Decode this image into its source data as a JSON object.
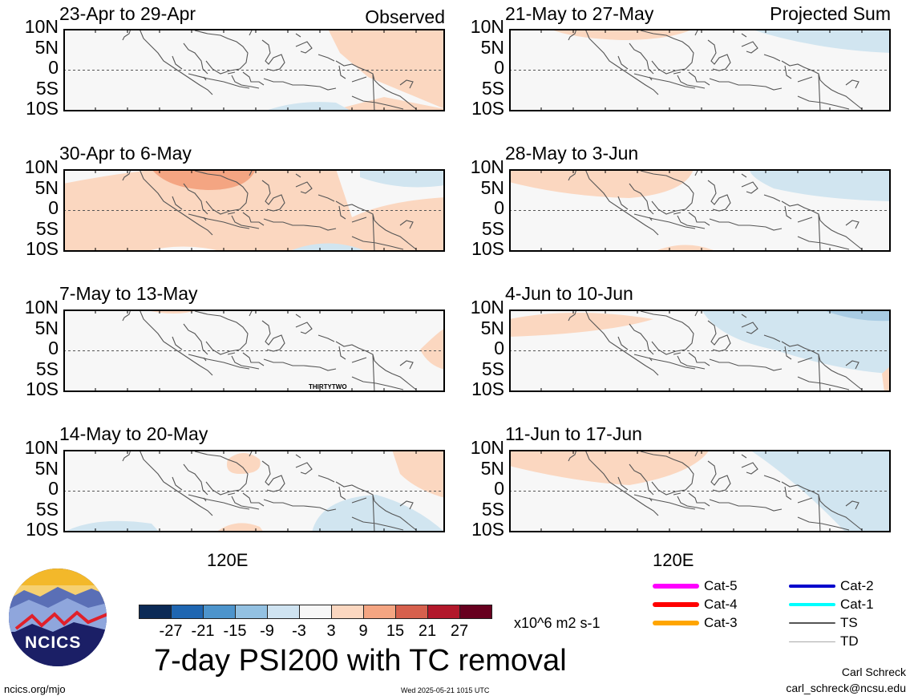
{
  "figure": {
    "main_title": "7-day PSI200 with TC removal",
    "units": "x10^6 m2 s-1",
    "left_column_tag": "Observed",
    "right_column_tag": "Projected Sum",
    "lat_labels": [
      "10N",
      "5N",
      "0",
      "5S",
      "10S"
    ],
    "lon_label": "120E",
    "site": "ncics.org/mjo",
    "timestamp": "Wed 2025-05-21 1015 UTC",
    "author": "Carl Schreck",
    "email": "carl_schreck@ncsu.edu",
    "logo_text": "NCICS"
  },
  "panels": [
    {
      "title": "23-Apr to 29-Apr",
      "column": "left",
      "row": 0
    },
    {
      "title": "30-Apr to 6-May",
      "column": "left",
      "row": 1
    },
    {
      "title": "7-May to 13-May",
      "column": "left",
      "row": 2,
      "annotation": "THIRTYTWO"
    },
    {
      "title": "14-May to 20-May",
      "column": "left",
      "row": 3
    },
    {
      "title": "21-May to 27-May",
      "column": "right",
      "row": 0
    },
    {
      "title": "28-May to 3-Jun",
      "column": "right",
      "row": 1
    },
    {
      "title": "4-Jun to 10-Jun",
      "column": "right",
      "row": 2
    },
    {
      "title": "11-Jun to 17-Jun",
      "column": "right",
      "row": 3
    }
  ],
  "colorbar": {
    "colors": [
      "#0b2a56",
      "#1f66b1",
      "#4d94cc",
      "#93c1e2",
      "#cfe3f1",
      "#f7f7f7",
      "#fbd7c0",
      "#f4a582",
      "#d6604d",
      "#b2182b",
      "#67001f"
    ],
    "ticks": [
      "-27",
      "-21",
      "-15",
      "-9",
      "-3",
      "3",
      "9",
      "15",
      "21",
      "27"
    ]
  },
  "legend": [
    {
      "label": "Cat-5",
      "color": "#ff00ff",
      "weight": "thick"
    },
    {
      "label": "Cat-4",
      "color": "#ff0000",
      "weight": "thick"
    },
    {
      "label": "Cat-3",
      "color": "#ffa500",
      "weight": "thick"
    },
    {
      "label": "Cat-2",
      "color": "#0000cc",
      "weight": "medium"
    },
    {
      "label": "Cat-1",
      "color": "#00ffff",
      "weight": "medium"
    },
    {
      "label": "TS",
      "color": "#555555",
      "weight": "thin"
    },
    {
      "label": "TD",
      "color": "#aaaaaa",
      "weight": "hair"
    }
  ],
  "colors": {
    "positive_light": "#fbd7c0",
    "positive_medium": "#f4a582",
    "negative_light": "#d1e5f0",
    "background": "#f7f7f7"
  }
}
